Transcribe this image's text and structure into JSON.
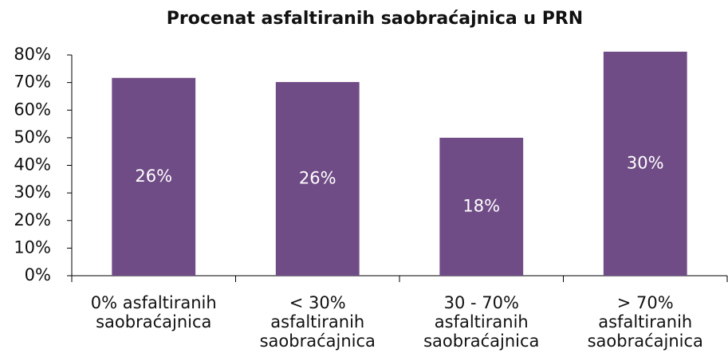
{
  "chart_data": {
    "type": "bar",
    "title": "Procenat asfaltiranih saobraćajnica u PRN",
    "categories": [
      "0% asfaltiranih saobraćajnica",
      "< 30% asfaltiranih saobraćajnica",
      "30 - 70% asfaltiranih saobraćajnica",
      "> 70% asfaltiranih saobraćajnica"
    ],
    "values": [
      71.7,
      70.2,
      50,
      81.2
    ],
    "bar_labels": [
      "26%",
      "26%",
      "18%",
      "30%"
    ],
    "color": "#704c86",
    "ylim": [
      0,
      80
    ],
    "yticks": [
      {
        "value": 0,
        "label": "0%"
      },
      {
        "value": 10,
        "label": "10%"
      },
      {
        "value": 20,
        "label": "20%"
      },
      {
        "value": 30,
        "label": "30%"
      },
      {
        "value": 40,
        "label": "40%"
      },
      {
        "value": 50,
        "label": "50%"
      },
      {
        "value": 60,
        "label": "60%"
      },
      {
        "value": 70,
        "label": "70%"
      },
      {
        "value": 80,
        "label": "80%"
      }
    ],
    "grid": false
  }
}
